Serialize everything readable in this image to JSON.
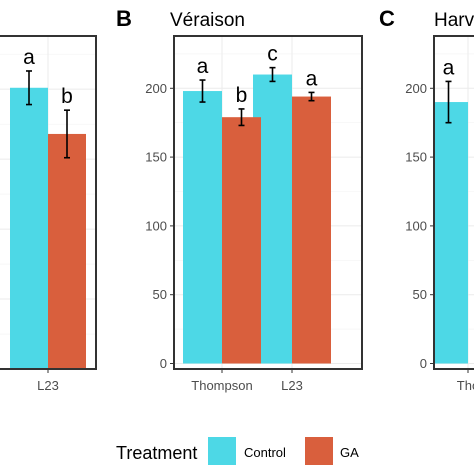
{
  "chart_data": [
    {
      "type": "bar",
      "panel_letter": "",
      "title": "",
      "categories": [
        "",
        "L23"
      ],
      "series": [
        {
          "name": "Control",
          "values": [
            null,
            201
          ],
          "errors": [
            null,
            12
          ],
          "letters": [
            "",
            "a"
          ]
        },
        {
          "name": "GA",
          "values": [
            null,
            168
          ],
          "errors": [
            null,
            17
          ],
          "letters": [
            "",
            "b"
          ]
        }
      ],
      "ylim": [
        0,
        238
      ],
      "yticks": [],
      "grid": true
    },
    {
      "type": "bar",
      "panel_letter": "B",
      "title": "Véraison",
      "categories": [
        "Thompson",
        "L23"
      ],
      "series": [
        {
          "name": "Control",
          "values": [
            198,
            210
          ],
          "errors": [
            8,
            5
          ],
          "letters": [
            "a",
            "c"
          ]
        },
        {
          "name": "GA",
          "values": [
            179,
            194
          ],
          "errors": [
            6,
            3
          ],
          "letters": [
            "b",
            "a"
          ]
        }
      ],
      "ylim": [
        -4,
        238
      ],
      "yticks": [
        0,
        50,
        100,
        150,
        200
      ],
      "grid": true
    },
    {
      "type": "bar",
      "panel_letter": "C",
      "title": "Harv",
      "categories": [
        "Tho"
      ],
      "series": [
        {
          "name": "Control",
          "values": [
            190
          ],
          "errors": [
            15
          ],
          "letters": [
            "a"
          ]
        }
      ],
      "ylim": [
        -4,
        238
      ],
      "yticks": [
        0,
        50,
        100,
        150,
        200
      ],
      "grid": true
    }
  ],
  "legend": {
    "title": "Treatment",
    "items": [
      {
        "label": "Control",
        "color": "#4dd8e6"
      },
      {
        "label": "GA",
        "color": "#d95f3d"
      }
    ]
  },
  "colors": {
    "control": "#4dd8e6",
    "ga": "#d95f3d",
    "grid": "#ebebeb",
    "axis_text": "#4d4d4d",
    "frame": "#333333"
  }
}
